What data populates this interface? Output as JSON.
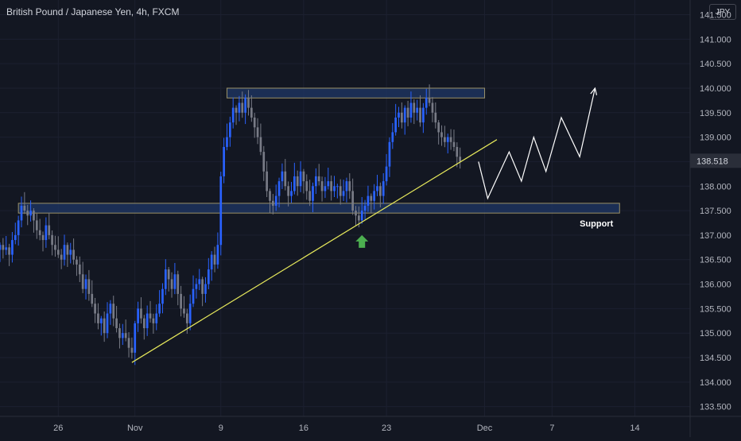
{
  "header": {
    "title": "British Pound / Japanese Yen, 4h, FXCM",
    "currency_badge": "JPY"
  },
  "colors": {
    "background": "#131722",
    "grid": "#1c2030",
    "axis_text": "#b2b5be",
    "candle_up": "#2962ff",
    "candle_down": "#787b86",
    "trendline": "#e6e85b",
    "zone_fill": "#1e3461",
    "zone_border": "#d1c07a",
    "projection": "#ffffff",
    "arrow": "#4caf50",
    "last_price_bg": "#2a2e39"
  },
  "chart_data": {
    "type": "candlestick",
    "title": "British Pound / Japanese Yen, 4h, FXCM",
    "interval": "4h",
    "xlabel": "",
    "ylabel": "",
    "ylim": [
      133.3,
      141.8
    ],
    "grid": true,
    "y_ticks": [
      "133.500",
      "134.000",
      "134.500",
      "135.000",
      "135.500",
      "136.000",
      "136.500",
      "137.000",
      "137.500",
      "138.000",
      "138.500",
      "139.000",
      "139.500",
      "140.000",
      "140.500",
      "141.000",
      "141.500"
    ],
    "x_ticks": [
      {
        "label": "26",
        "index": 19
      },
      {
        "label": "Nov",
        "index": 44
      },
      {
        "label": "9",
        "index": 72
      },
      {
        "label": "16",
        "index": 99
      },
      {
        "label": "23",
        "index": 126
      },
      {
        "label": "Dec",
        "index": 158
      },
      {
        "label": "7",
        "index": 180
      },
      {
        "label": "14",
        "index": 207
      }
    ],
    "x_range": [
      0,
      225
    ],
    "last_price": "138.518",
    "closes": [
      136.8,
      136.7,
      136.75,
      136.6,
      136.9,
      137.0,
      137.3,
      137.6,
      137.5,
      137.4,
      137.5,
      137.3,
      137.1,
      137.0,
      136.9,
      137.2,
      137.0,
      136.8,
      136.7,
      136.6,
      136.5,
      136.8,
      136.6,
      136.7,
      136.5,
      136.4,
      136.2,
      135.9,
      136.1,
      135.8,
      135.6,
      135.4,
      135.2,
      135.3,
      135.0,
      135.4,
      135.6,
      135.3,
      135.1,
      134.9,
      135.0,
      134.9,
      134.7,
      134.6,
      135.2,
      135.5,
      135.3,
      135.1,
      135.4,
      135.3,
      135.2,
      135.4,
      135.6,
      135.9,
      136.3,
      136.1,
      135.9,
      136.2,
      135.8,
      135.5,
      135.4,
      135.2,
      135.6,
      135.9,
      136.0,
      136.1,
      135.8,
      136.0,
      136.3,
      136.6,
      136.4,
      136.8,
      138.2,
      138.8,
      139.0,
      139.3,
      139.6,
      139.5,
      139.7,
      139.5,
      139.8,
      139.6,
      139.4,
      139.2,
      139.0,
      138.7,
      138.3,
      137.9,
      137.7,
      137.6,
      137.8,
      138.1,
      138.3,
      138.0,
      137.8,
      137.9,
      138.2,
      138.0,
      138.3,
      138.1,
      137.9,
      137.7,
      138.0,
      138.2,
      138.1,
      137.9,
      138.0,
      138.1,
      137.9,
      138.0,
      138.0,
      137.8,
      137.9,
      138.1,
      137.9,
      137.5,
      137.4,
      137.3,
      137.5,
      137.6,
      137.8,
      137.7,
      137.9,
      138.0,
      137.8,
      138.1,
      138.4,
      138.9,
      139.1,
      139.4,
      139.5,
      139.3,
      139.6,
      139.4,
      139.7,
      139.5,
      139.6,
      139.3,
      139.6,
      139.8,
      139.7,
      139.5,
      139.3,
      139.1,
      139.0,
      138.9,
      139.0,
      138.9,
      138.8,
      138.6,
      138.5
    ],
    "projection_path": [
      [
        156,
        138.5
      ],
      [
        159,
        137.75
      ],
      [
        166,
        138.7
      ],
      [
        170,
        138.1
      ],
      [
        174,
        139.0
      ],
      [
        178,
        138.3
      ],
      [
        183,
        139.4
      ],
      [
        189,
        138.6
      ],
      [
        194,
        140.0
      ]
    ],
    "trendline": [
      [
        43,
        134.4
      ],
      [
        162,
        138.95
      ]
    ],
    "zones": [
      {
        "label": "",
        "x0": 74,
        "x1": 158,
        "y0": 139.8,
        "y1": 140.0
      },
      {
        "label": "Support",
        "x0": 6,
        "x1": 202,
        "y0": 137.45,
        "y1": 137.65
      }
    ],
    "annotations": [
      {
        "type": "arrow_up",
        "x": 118,
        "y": 137.0,
        "color": "#4caf50"
      }
    ]
  }
}
